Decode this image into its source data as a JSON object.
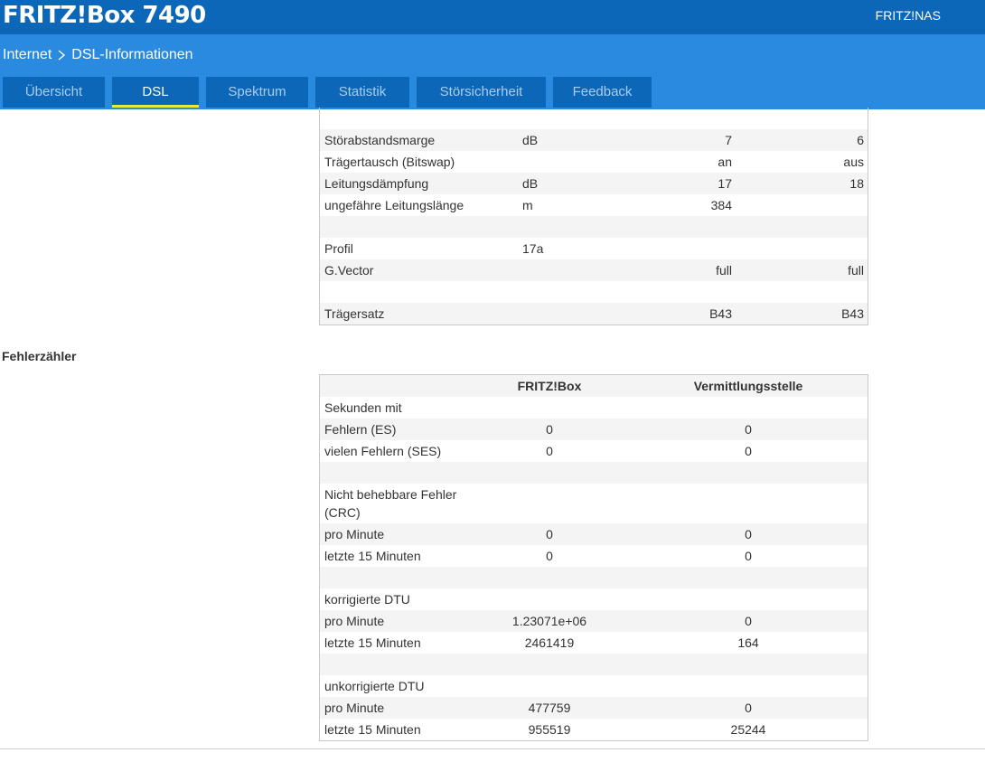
{
  "header": {
    "brand": "FRITZ!Box 7490",
    "nas_link": "FRITZ!NAS"
  },
  "breadcrumb": {
    "parent": "Internet",
    "current": "DSL-Informationen"
  },
  "tabs": [
    {
      "label": "Übersicht",
      "active": false
    },
    {
      "label": "DSL",
      "active": true
    },
    {
      "label": "Spektrum",
      "active": false
    },
    {
      "label": "Statistik",
      "active": false
    },
    {
      "label": "Störsicherheit",
      "active": false
    },
    {
      "label": "Feedback",
      "active": false
    }
  ],
  "line_table": {
    "rows": [
      {
        "label": "Störabstandsmarge",
        "unit": "dB",
        "down": "7",
        "up": "6"
      },
      {
        "label": "Trägertausch (Bitswap)",
        "unit": "",
        "down": "an",
        "up": "aus"
      },
      {
        "label": "Leitungsdämpfung",
        "unit": "dB",
        "down": "17",
        "up": "18"
      },
      {
        "label": "ungefähre Leitungslänge",
        "unit": "m",
        "down": "384",
        "up": ""
      },
      {
        "label": "",
        "unit": "",
        "down": "",
        "up": ""
      },
      {
        "label": "Profil",
        "unit": "17a",
        "down": "",
        "up": ""
      },
      {
        "label": "G.Vector",
        "unit": "",
        "down": "full",
        "up": "full"
      },
      {
        "label": "",
        "unit": "",
        "down": "",
        "up": ""
      },
      {
        "label": "Trägersatz",
        "unit": "",
        "down": "B43",
        "up": "B43"
      }
    ]
  },
  "error_section": {
    "title": "Fehlerzähler",
    "col_fritzbox": "FRITZ!Box",
    "col_exchange": "Vermittlungsstelle",
    "rows": [
      {
        "label": "Sekunden mit",
        "a": "",
        "b": ""
      },
      {
        "label": "Fehlern (ES)",
        "a": "0",
        "b": "0"
      },
      {
        "label": "vielen Fehlern (SES)",
        "a": "0",
        "b": "0"
      },
      {
        "label": "",
        "a": "",
        "b": ""
      },
      {
        "label": "Nicht behebbare Fehler (CRC)",
        "a": "",
        "b": "",
        "tall": true
      },
      {
        "label": "pro Minute",
        "a": "0",
        "b": "0"
      },
      {
        "label": "letzte 15 Minuten",
        "a": "0",
        "b": "0"
      },
      {
        "label": "",
        "a": "",
        "b": ""
      },
      {
        "label": "korrigierte DTU",
        "a": "",
        "b": ""
      },
      {
        "label": "pro Minute",
        "a": "1.23071e+06",
        "b": "0"
      },
      {
        "label": "letzte 15 Minuten",
        "a": "2461419",
        "b": "164"
      },
      {
        "label": "",
        "a": "",
        "b": ""
      },
      {
        "label": "unkorrigierte DTU",
        "a": "",
        "b": ""
      },
      {
        "label": "pro Minute",
        "a": "477759",
        "b": "0"
      },
      {
        "label": "letzte 15 Minuten",
        "a": "955519",
        "b": "25244"
      }
    ]
  },
  "colors": {
    "topbar": "#0c67b8",
    "subbar": "#2a8ae0",
    "active_tab_underline": "#e6ea3c",
    "row_alt": "#f4f4f4"
  }
}
